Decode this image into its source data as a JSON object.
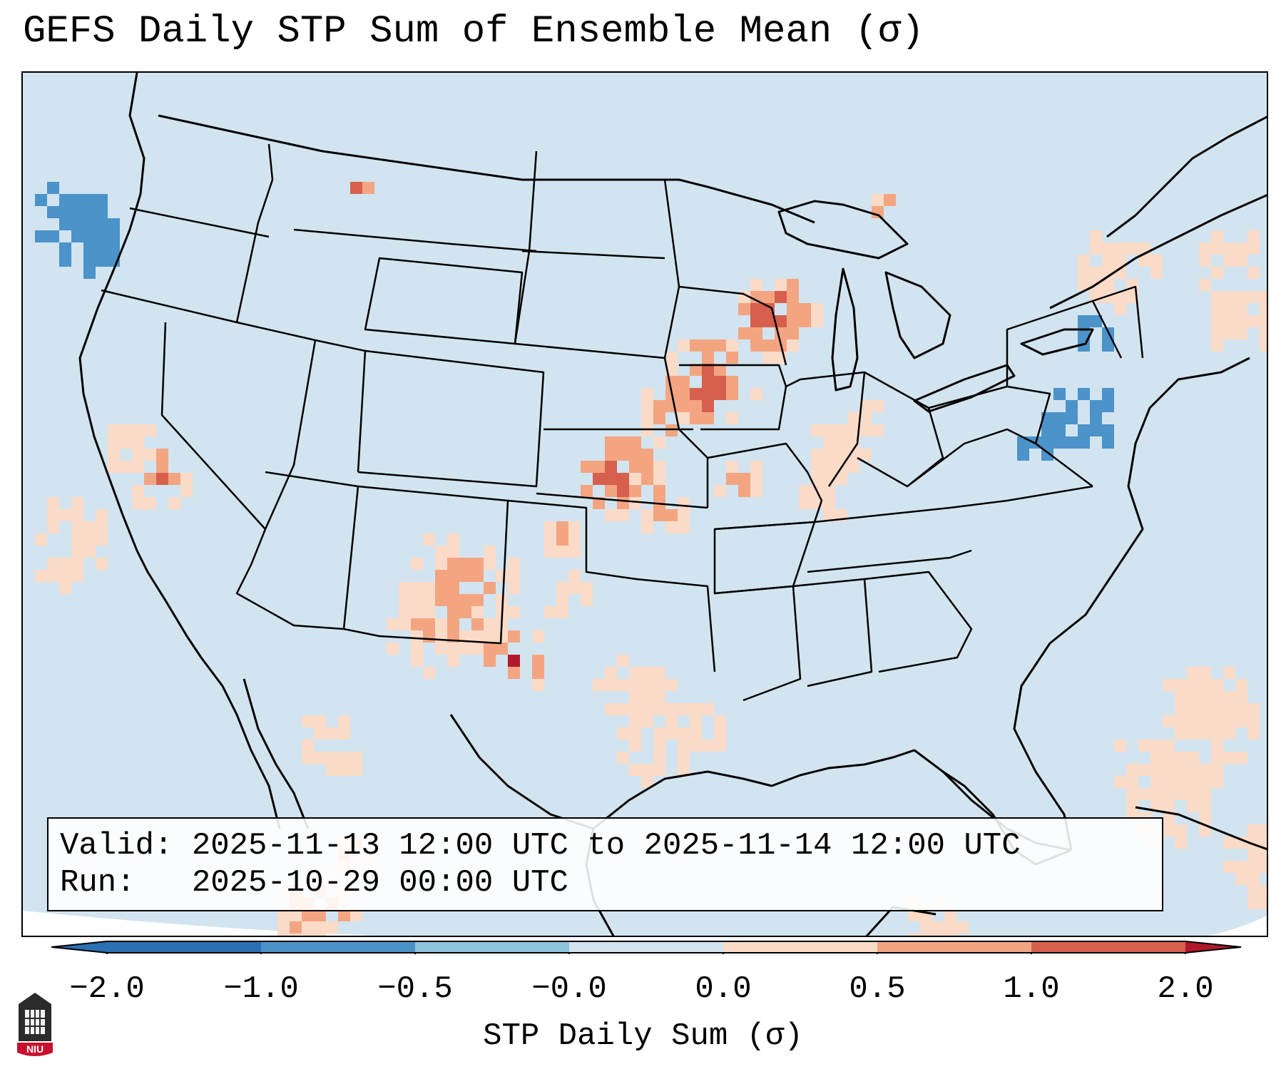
{
  "title": "GEFS Daily STP Sum of Ensemble Mean (σ)",
  "valid_box": {
    "valid": "Valid: 2025-11-13 12:00 UTC to 2025-11-14 12:00 UTC",
    "run": "Run:   2025-10-29 00:00 UTC"
  },
  "colorbar": {
    "label": "STP Daily Sum (σ)",
    "ticks": [
      "−2.0",
      "−1.0",
      "−0.5",
      "−0.0",
      "0.0",
      "0.5",
      "1.0",
      "2.0"
    ],
    "colors": [
      "#2b6fb4",
      "#4b93c9",
      "#8ec4de",
      "#d2e4ef",
      "#fadbc8",
      "#f3a582",
      "#d6604d",
      "#b2182b"
    ]
  },
  "logo": {
    "text": "NIU"
  },
  "map": {
    "background_color": "#d2e4ef",
    "features": [
      "coastlines",
      "us-state-borders",
      "country-borders"
    ],
    "highlight_regions": [
      "central-plains-kansas-nebraska",
      "iowa-minnesota-wisconsin",
      "new-mexico",
      "western-texas",
      "illinois-indiana",
      "california",
      "pacific-northwest-coast",
      "new-england",
      "atlantic-ocean"
    ]
  }
}
